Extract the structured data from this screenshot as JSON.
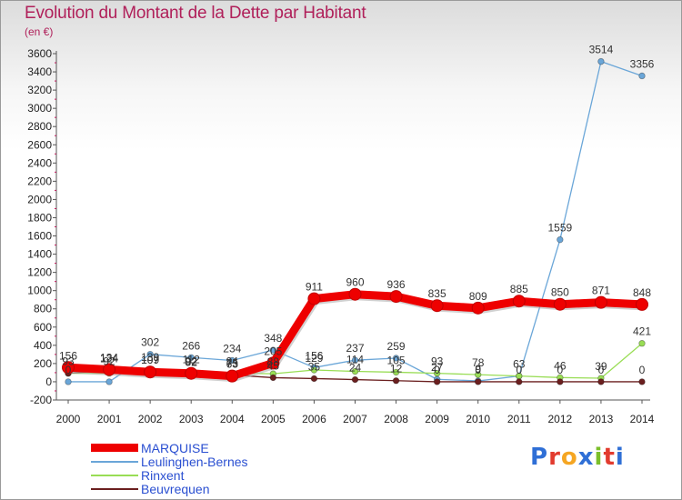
{
  "chart_data": {
    "type": "line",
    "title": "Evolution du Montant de la Dette par Habitant",
    "unit_label": "(en €)",
    "x": [
      "2000",
      "2001",
      "2002",
      "2003",
      "2004",
      "2005",
      "2006",
      "2007",
      "2008",
      "2009",
      "2010",
      "2011",
      "2012",
      "2013",
      "2014"
    ],
    "ylim": [
      -200,
      3600
    ],
    "yticks": [
      -200,
      0,
      200,
      400,
      600,
      800,
      1000,
      1200,
      1400,
      1600,
      1800,
      2000,
      2200,
      2400,
      2600,
      2800,
      3000,
      3200,
      3400,
      3600
    ],
    "grid": false,
    "legend_position": "bottom-left",
    "series": [
      {
        "name": "MARQUISE",
        "color": "#ee0000",
        "values": [
          156,
          134,
          107,
          92,
          63,
          205,
          911,
          960,
          936,
          835,
          809,
          885,
          850,
          871,
          848
        ]
      },
      {
        "name": "Leulinghen-Bernes",
        "color": "#6aa6d8",
        "values": [
          0,
          0,
          302,
          266,
          234,
          348,
          156,
          237,
          259,
          27,
          9,
          63,
          1559,
          3514,
          3356
        ]
      },
      {
        "name": "Rinxent",
        "color": "#99dd55",
        "values": [
          93,
          92,
          139,
          112,
          94,
          88,
          129,
          114,
          105,
          93,
          78,
          63,
          46,
          39,
          421
        ]
      },
      {
        "name": "Beuvrequen",
        "color": "#6b1f1f",
        "values": [
          93,
          124,
          109,
          82,
          75,
          45,
          35,
          24,
          12,
          0,
          0,
          0,
          0,
          0,
          0
        ]
      }
    ],
    "labels": [
      {
        "x": 0,
        "y": 156,
        "text": "156"
      },
      {
        "x": 0,
        "y": 93,
        "text": "93"
      },
      {
        "x": 0,
        "y": 0,
        "text": "0"
      },
      {
        "x": 1,
        "y": 134,
        "text": "134"
      },
      {
        "x": 1,
        "y": 124,
        "text": "124"
      },
      {
        "x": 1,
        "y": 92,
        "text": "92"
      },
      {
        "x": 2,
        "y": 302,
        "text": "302"
      },
      {
        "x": 2,
        "y": 139,
        "text": "139"
      },
      {
        "x": 2,
        "y": 109,
        "text": "109"
      },
      {
        "x": 2,
        "y": 107,
        "text": "107"
      },
      {
        "x": 3,
        "y": 266,
        "text": "266"
      },
      {
        "x": 3,
        "y": 112,
        "text": "112"
      },
      {
        "x": 3,
        "y": 92,
        "text": "92"
      },
      {
        "x": 3,
        "y": 82,
        "text": "82"
      },
      {
        "x": 4,
        "y": 234,
        "text": "234"
      },
      {
        "x": 4,
        "y": 94,
        "text": "94"
      },
      {
        "x": 4,
        "y": 75,
        "text": "75"
      },
      {
        "x": 4,
        "y": 63,
        "text": "63"
      },
      {
        "x": 5,
        "y": 348,
        "text": "348"
      },
      {
        "x": 5,
        "y": 205,
        "text": "205"
      },
      {
        "x": 5,
        "y": 88,
        "text": "88"
      },
      {
        "x": 5,
        "y": 45,
        "text": "45"
      },
      {
        "x": 6,
        "y": 911,
        "text": "911"
      },
      {
        "x": 6,
        "y": 156,
        "text": "156"
      },
      {
        "x": 6,
        "y": 129,
        "text": "129"
      },
      {
        "x": 6,
        "y": 35,
        "text": "35"
      },
      {
        "x": 7,
        "y": 960,
        "text": "960"
      },
      {
        "x": 7,
        "y": 237,
        "text": "237"
      },
      {
        "x": 7,
        "y": 114,
        "text": "114"
      },
      {
        "x": 7,
        "y": 24,
        "text": "24"
      },
      {
        "x": 8,
        "y": 936,
        "text": "936"
      },
      {
        "x": 8,
        "y": 259,
        "text": "259"
      },
      {
        "x": 8,
        "y": 105,
        "text": "105"
      },
      {
        "x": 8,
        "y": 12,
        "text": "12"
      },
      {
        "x": 9,
        "y": 835,
        "text": "835"
      },
      {
        "x": 9,
        "y": 93,
        "text": "93"
      },
      {
        "x": 9,
        "y": 27,
        "text": "27"
      },
      {
        "x": 9,
        "y": 0,
        "text": "0"
      },
      {
        "x": 10,
        "y": 809,
        "text": "809"
      },
      {
        "x": 10,
        "y": 78,
        "text": "78"
      },
      {
        "x": 10,
        "y": 9,
        "text": "9"
      },
      {
        "x": 10,
        "y": 0,
        "text": "0"
      },
      {
        "x": 11,
        "y": 885,
        "text": "885"
      },
      {
        "x": 11,
        "y": 63,
        "text": "63"
      },
      {
        "x": 11,
        "y": 0,
        "text": "0"
      },
      {
        "x": 12,
        "y": 1559,
        "text": "1559"
      },
      {
        "x": 12,
        "y": 850,
        "text": "850"
      },
      {
        "x": 12,
        "y": 46,
        "text": "46"
      },
      {
        "x": 12,
        "y": 0,
        "text": "0"
      },
      {
        "x": 13,
        "y": 3514,
        "text": "3514"
      },
      {
        "x": 13,
        "y": 871,
        "text": "871"
      },
      {
        "x": 13,
        "y": 39,
        "text": "39"
      },
      {
        "x": 13,
        "y": 0,
        "text": "0"
      },
      {
        "x": 14,
        "y": 3356,
        "text": "3356"
      },
      {
        "x": 14,
        "y": 848,
        "text": "848"
      },
      {
        "x": 14,
        "y": 421,
        "text": "421"
      },
      {
        "x": 14,
        "y": 0,
        "text": "0"
      }
    ]
  },
  "legend": [
    {
      "label": "MARQUISE",
      "color": "#ee0000"
    },
    {
      "label": "Leulinghen-Bernes",
      "color": "#6aa6d8"
    },
    {
      "label": "Rinxent",
      "color": "#99dd55"
    },
    {
      "label": "Beuvrequen",
      "color": "#6b1f1f"
    }
  ],
  "logo": {
    "text": "Proxiti",
    "letter_colors": [
      "#2f6fd6",
      "#e23b2e",
      "#f5a623",
      "#2f6fd6",
      "#7bbf2a",
      "#e23b2e",
      "#2f6fd6"
    ]
  }
}
